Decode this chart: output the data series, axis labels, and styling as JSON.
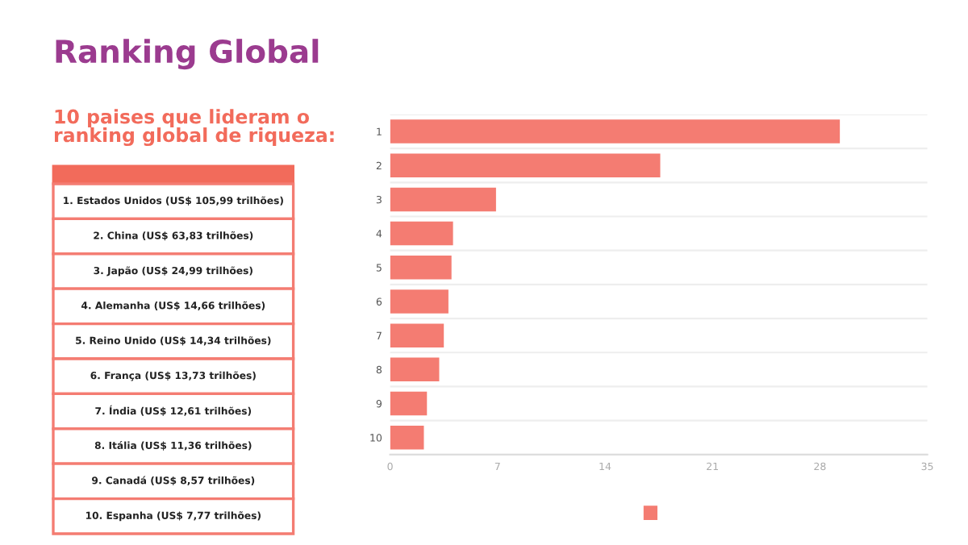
{
  "chart_data": {
    "type": "bar",
    "orientation": "horizontal",
    "title": "Ranking Global",
    "subtitle": "10 paises que lideram o\nranking global de riqueza:",
    "categories": [
      "1",
      "2",
      "3",
      "4",
      "5",
      "6",
      "7",
      "8",
      "9",
      "10"
    ],
    "series": [
      {
        "color": "#f47c72",
        "values": [
          29.3,
          17.6,
          6.9,
          4.1,
          4.0,
          3.8,
          3.5,
          3.2,
          2.4,
          2.2
        ]
      }
    ],
    "xlim": [
      0,
      35
    ],
    "xticks": [
      0,
      7,
      14,
      21,
      28,
      35
    ],
    "grid": "y",
    "annotations": [
      "1. Estados Unidos (US$ 105,99 trilhões)",
      "2. China (US$ 63,83 trilhões)",
      "3. Japão (US$ 24,99 trilhões)",
      "4. Alemanha (US$ 14,66 trilhões)",
      "5. Reino Unido (US$ 14,34 trilhões)",
      "6. França (US$ 13,73 trilhões)",
      "7. Índia (US$ 12,61 trilhões)",
      "8. Itália (US$ 11,36 trilhões)",
      "9. Canadá (US$ 8,57 trilhões)",
      "10. Espanha (US$ 7,77 trilhões)"
    ]
  }
}
